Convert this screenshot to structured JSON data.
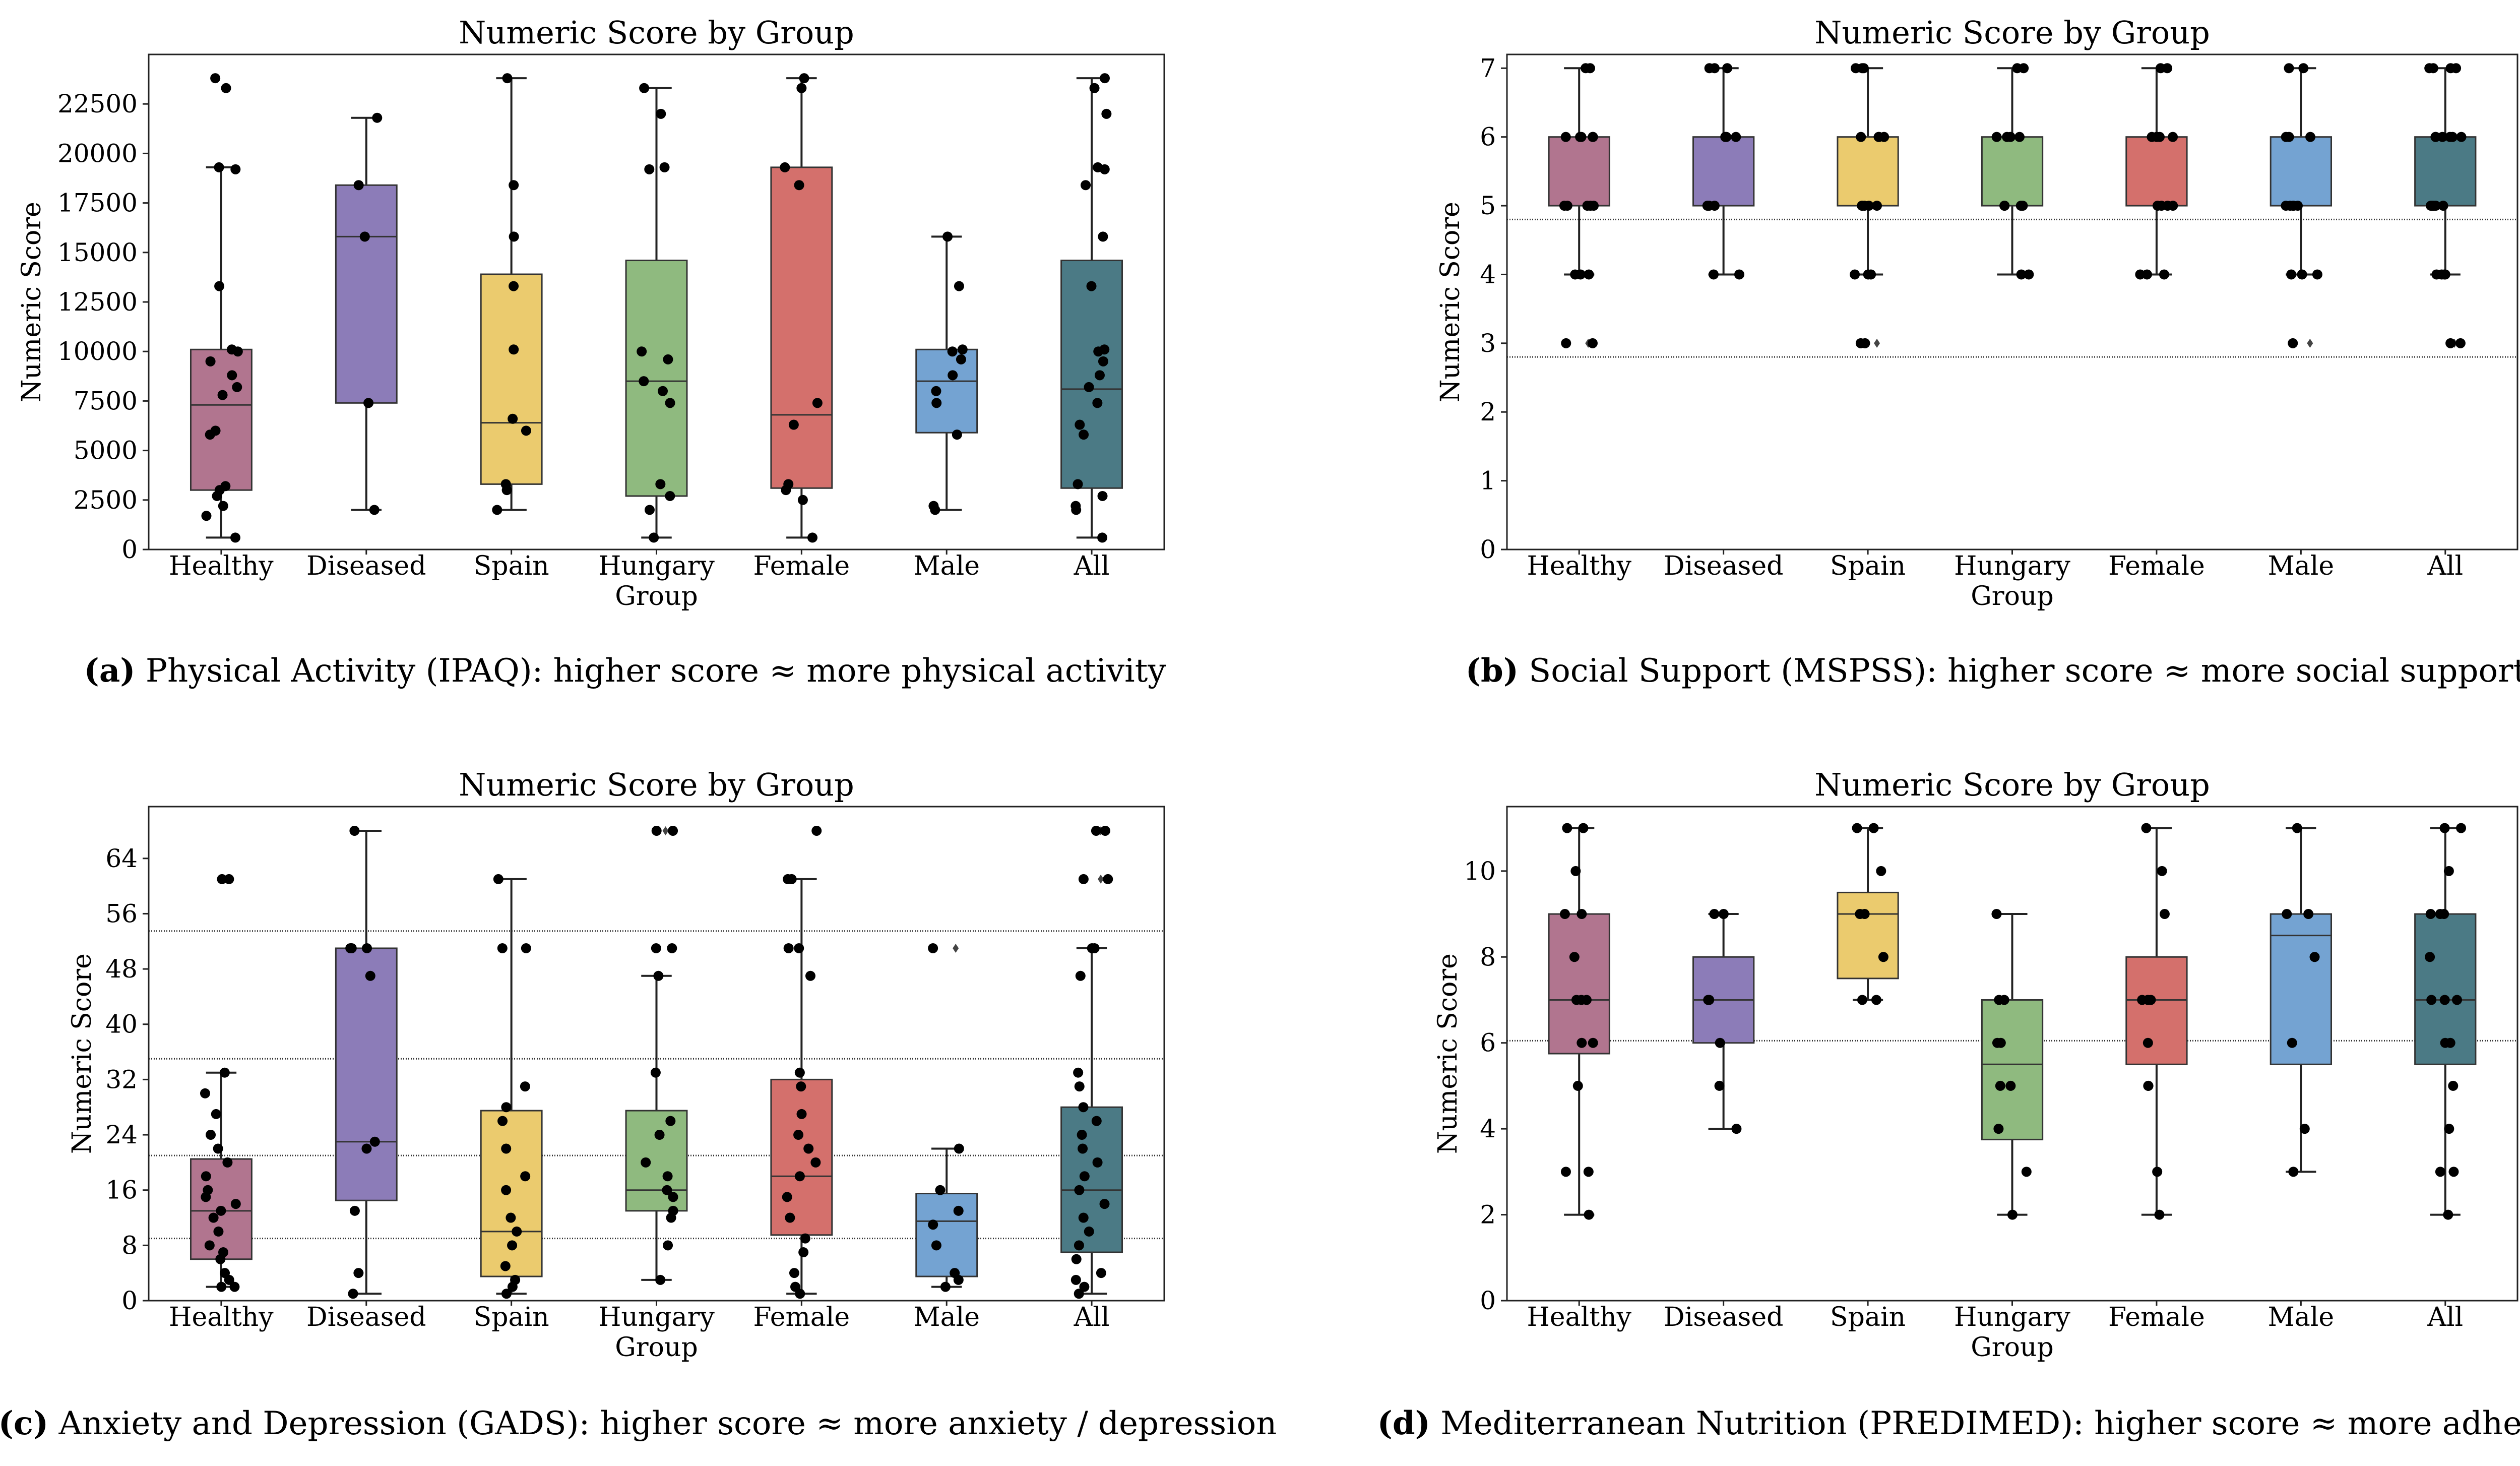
{
  "figure": {
    "colors": {
      "Healthy": "#b1758f",
      "Diseased": "#8c7cb8",
      "Spain": "#ebcb6e",
      "Hungary": "#8fba7f",
      "Female": "#d4706c",
      "Male": "#74a3d2",
      "All": "#4b7a85"
    }
  },
  "chart_data": [
    {
      "id": "a",
      "type": "box",
      "title": "Numeric Score by Group",
      "xlabel": "Group",
      "ylabel": "Numeric Score",
      "caption_label": "(a)",
      "caption_text": "Physical Activity (IPAQ): higher score ≈ more physical activity",
      "categories": [
        "Healthy",
        "Diseased",
        "Spain",
        "Hungary",
        "Female",
        "Male",
        "All"
      ],
      "ylim": [
        0,
        25000
      ],
      "yticks": [
        0,
        2500,
        5000,
        7500,
        10000,
        12500,
        15000,
        17500,
        20000,
        22500
      ],
      "ytick_labels": [
        "0",
        "2500",
        "5000",
        "7500",
        "10000",
        "12500",
        "15000",
        "17500",
        "20000",
        "22500"
      ],
      "hlines": [],
      "boxes": [
        {
          "group": "Healthy",
          "q1": 3000,
          "median": 7300,
          "q3": 10100,
          "wlo": 600,
          "whi": 19300,
          "outliers": [],
          "points": [
            600,
            1700,
            2200,
            2700,
            3000,
            3200,
            5800,
            6000,
            7800,
            8200,
            8800,
            9500,
            10000,
            10100,
            13300,
            19200,
            19300,
            23300,
            23800
          ]
        },
        {
          "group": "Diseased",
          "q1": 7400,
          "median": 15800,
          "q3": 18400,
          "wlo": 2000,
          "whi": 21800,
          "outliers": [],
          "points": [
            2000,
            7400,
            15800,
            18400,
            21800
          ]
        },
        {
          "group": "Spain",
          "q1": 3300,
          "median": 6400,
          "q3": 13900,
          "wlo": 2000,
          "whi": 23800,
          "outliers": [],
          "points": [
            2000,
            3000,
            3300,
            6000,
            6600,
            10100,
            13300,
            15800,
            18400,
            23800
          ]
        },
        {
          "group": "Hungary",
          "q1": 2700,
          "median": 8500,
          "q3": 14600,
          "wlo": 600,
          "whi": 23300,
          "outliers": [],
          "points": [
            600,
            2000,
            2700,
            3300,
            7400,
            8000,
            8500,
            9600,
            10000,
            19200,
            19300,
            22000,
            23300
          ]
        },
        {
          "group": "Female",
          "q1": 3100,
          "median": 6800,
          "q3": 19300,
          "wlo": 600,
          "whi": 23800,
          "outliers": [],
          "points": [
            600,
            2500,
            3000,
            3300,
            6300,
            7400,
            18400,
            19300,
            23300,
            23800
          ]
        },
        {
          "group": "Male",
          "q1": 5900,
          "median": 8500,
          "q3": 10100,
          "wlo": 2000,
          "whi": 15800,
          "outliers": [],
          "points": [
            2000,
            2200,
            5800,
            7400,
            8000,
            8800,
            9600,
            10000,
            10100,
            13300,
            15800
          ]
        },
        {
          "group": "All",
          "q1": 3100,
          "median": 8100,
          "q3": 14600,
          "wlo": 600,
          "whi": 23800,
          "outliers": [],
          "points": [
            600,
            2000,
            2200,
            2700,
            3300,
            5800,
            6300,
            7400,
            8200,
            8800,
            9500,
            10000,
            10100,
            13300,
            15800,
            18400,
            19200,
            19300,
            22000,
            23300,
            23800
          ]
        }
      ]
    },
    {
      "id": "b",
      "type": "box",
      "title": "Numeric Score by Group",
      "xlabel": "Group",
      "ylabel": "Numeric Score",
      "caption_label": "(b)",
      "caption_text": "Social Support (MSPSS): higher score ≈ more social support",
      "categories": [
        "Healthy",
        "Diseased",
        "Spain",
        "Hungary",
        "Female",
        "Male",
        "All"
      ],
      "ylim": [
        0,
        7.2
      ],
      "yticks": [
        0,
        1,
        2,
        3,
        4,
        5,
        6,
        7
      ],
      "ytick_labels": [
        "0",
        "1",
        "2",
        "3",
        "4",
        "5",
        "6",
        "7"
      ],
      "hlines": [
        4.8,
        2.8
      ],
      "boxes": [
        {
          "group": "Healthy",
          "q1": 5,
          "median": 5,
          "q3": 6,
          "wlo": 4,
          "whi": 7,
          "outliers": [
            3
          ],
          "points": [
            3,
            3,
            4,
            4,
            4,
            5,
            5,
            5,
            5,
            5,
            6,
            6,
            6,
            6,
            6,
            7,
            7
          ]
        },
        {
          "group": "Diseased",
          "q1": 5,
          "median": 5,
          "q3": 6,
          "wlo": 4,
          "whi": 7,
          "outliers": [],
          "points": [
            4,
            4,
            5,
            5,
            5,
            6,
            6,
            6,
            7,
            7,
            7
          ]
        },
        {
          "group": "Spain",
          "q1": 5,
          "median": 5,
          "q3": 6,
          "wlo": 4,
          "whi": 7,
          "outliers": [
            3
          ],
          "points": [
            3,
            3,
            4,
            4,
            4,
            5,
            5,
            5,
            5,
            5,
            6,
            6,
            6,
            6,
            7,
            7,
            7
          ]
        },
        {
          "group": "Hungary",
          "q1": 5,
          "median": 5,
          "q3": 6,
          "wlo": 4,
          "whi": 7,
          "outliers": [],
          "points": [
            4,
            4,
            5,
            5,
            5,
            5,
            6,
            6,
            6,
            6,
            7,
            7
          ]
        },
        {
          "group": "Female",
          "q1": 5,
          "median": 5,
          "q3": 6,
          "wlo": 4,
          "whi": 7,
          "outliers": [],
          "points": [
            4,
            4,
            4,
            5,
            5,
            5,
            5,
            6,
            6,
            6,
            6,
            7,
            7
          ]
        },
        {
          "group": "Male",
          "q1": 5,
          "median": 5,
          "q3": 6,
          "wlo": 4,
          "whi": 7,
          "outliers": [
            3
          ],
          "points": [
            3,
            4,
            4,
            4,
            5,
            5,
            5,
            5,
            5,
            6,
            6,
            6,
            7,
            7
          ]
        },
        {
          "group": "All",
          "q1": 5,
          "median": 5,
          "q3": 6,
          "wlo": 4,
          "whi": 7,
          "outliers": [
            3
          ],
          "points": [
            3,
            3,
            4,
            4,
            4,
            4,
            5,
            5,
            5,
            5,
            5,
            5,
            6,
            6,
            6,
            6,
            6,
            6,
            7,
            7,
            7,
            7
          ]
        }
      ]
    },
    {
      "id": "c",
      "type": "box",
      "title": "Numeric Score by Group",
      "xlabel": "Group",
      "ylabel": "Numeric Score",
      "caption_label": "(c)",
      "caption_text": "Anxiety and Depression (GADS): higher score ≈ more anxiety / depression",
      "categories": [
        "Healthy",
        "Diseased",
        "Spain",
        "Hungary",
        "Female",
        "Male",
        "All"
      ],
      "ylim": [
        0,
        71.5
      ],
      "yticks": [
        0,
        8,
        16,
        24,
        32,
        40,
        48,
        56,
        64
      ],
      "ytick_labels": [
        "0",
        "8",
        "16",
        "24",
        "32",
        "40",
        "48",
        "56",
        "64"
      ],
      "hlines": [
        53.5,
        35,
        21,
        9
      ],
      "boxes": [
        {
          "group": "Healthy",
          "q1": 6,
          "median": 13,
          "q3": 20.5,
          "wlo": 2,
          "whi": 33,
          "outliers": [
            61
          ],
          "points": [
            2,
            2,
            3,
            4,
            6,
            7,
            8,
            10,
            12,
            13,
            14,
            15,
            16,
            18,
            20,
            22,
            24,
            27,
            30,
            33,
            61,
            61
          ]
        },
        {
          "group": "Diseased",
          "q1": 14.5,
          "median": 23,
          "q3": 51,
          "wlo": 1,
          "whi": 68,
          "outliers": [],
          "points": [
            1,
            4,
            13,
            22,
            23,
            47,
            51,
            51,
            51,
            68
          ]
        },
        {
          "group": "Spain",
          "q1": 3.5,
          "median": 10,
          "q3": 27.5,
          "wlo": 1,
          "whi": 61,
          "outliers": [],
          "points": [
            1,
            2,
            3,
            5,
            8,
            10,
            12,
            16,
            18,
            22,
            26,
            28,
            31,
            51,
            51,
            61
          ]
        },
        {
          "group": "Hungary",
          "q1": 13,
          "median": 16,
          "q3": 27.5,
          "wlo": 3,
          "whi": 47,
          "outliers": [
            68
          ],
          "points": [
            3,
            8,
            12,
            13,
            15,
            16,
            18,
            20,
            24,
            26,
            33,
            47,
            51,
            51,
            68,
            68
          ]
        },
        {
          "group": "Female",
          "q1": 9.5,
          "median": 18,
          "q3": 32,
          "wlo": 1,
          "whi": 61,
          "outliers": [],
          "points": [
            1,
            2,
            4,
            7,
            9,
            12,
            15,
            18,
            20,
            22,
            24,
            27,
            31,
            33,
            47,
            51,
            51,
            61,
            61,
            68
          ]
        },
        {
          "group": "Male",
          "q1": 3.5,
          "median": 11.5,
          "q3": 15.5,
          "wlo": 2,
          "whi": 22,
          "outliers": [
            51
          ],
          "points": [
            2,
            3,
            4,
            8,
            11,
            13,
            16,
            22,
            51
          ]
        },
        {
          "group": "All",
          "q1": 7,
          "median": 16,
          "q3": 28,
          "wlo": 1,
          "whi": 51,
          "outliers": [
            61,
            68
          ],
          "points": [
            1,
            2,
            3,
            4,
            6,
            8,
            10,
            12,
            14,
            16,
            18,
            20,
            22,
            24,
            26,
            28,
            31,
            33,
            47,
            51,
            51,
            61,
            61,
            68,
            68
          ]
        }
      ]
    },
    {
      "id": "d",
      "type": "box",
      "title": "Numeric Score by Group",
      "xlabel": "Group",
      "ylabel": "Numeric Score",
      "caption_label": "(d)",
      "caption_text": "Mediterranean Nutrition (PREDIMED): higher score ≈ more adherence",
      "categories": [
        "Healthy",
        "Diseased",
        "Spain",
        "Hungary",
        "Female",
        "Male",
        "All"
      ],
      "ylim": [
        0,
        11.5
      ],
      "yticks": [
        0,
        2,
        4,
        6,
        8,
        10
      ],
      "ytick_labels": [
        "0",
        "2",
        "4",
        "6",
        "8",
        "10"
      ],
      "hlines": [
        6.05
      ],
      "boxes": [
        {
          "group": "Healthy",
          "q1": 5.75,
          "median": 7,
          "q3": 9,
          "wlo": 2,
          "whi": 11,
          "outliers": [],
          "points": [
            2,
            3,
            3,
            5,
            6,
            6,
            7,
            7,
            7,
            8,
            9,
            9,
            10,
            11,
            11
          ]
        },
        {
          "group": "Diseased",
          "q1": 6,
          "median": 7,
          "q3": 8,
          "wlo": 4,
          "whi": 9,
          "outliers": [],
          "points": [
            4,
            5,
            6,
            7,
            7,
            9,
            9
          ]
        },
        {
          "group": "Spain",
          "q1": 7.5,
          "median": 9,
          "q3": 9.5,
          "wlo": 7,
          "whi": 11,
          "outliers": [],
          "points": [
            7,
            7,
            8,
            9,
            9,
            10,
            11,
            11
          ]
        },
        {
          "group": "Hungary",
          "q1": 3.75,
          "median": 5.5,
          "q3": 7,
          "wlo": 2,
          "whi": 9,
          "outliers": [],
          "points": [
            2,
            3,
            4,
            5,
            5,
            6,
            6,
            7,
            7,
            9
          ]
        },
        {
          "group": "Female",
          "q1": 5.5,
          "median": 7,
          "q3": 8,
          "wlo": 2,
          "whi": 11,
          "outliers": [],
          "points": [
            2,
            3,
            5,
            5,
            6,
            7,
            7,
            7,
            9,
            10,
            11
          ]
        },
        {
          "group": "Male",
          "q1": 5.5,
          "median": 8.5,
          "q3": 9,
          "wlo": 3,
          "whi": 11,
          "outliers": [],
          "points": [
            3,
            4,
            6,
            8,
            9,
            9,
            11
          ]
        },
        {
          "group": "All",
          "q1": 5.5,
          "median": 7,
          "q3": 9,
          "wlo": 2,
          "whi": 11,
          "outliers": [],
          "points": [
            2,
            3,
            3,
            4,
            5,
            6,
            6,
            7,
            7,
            7,
            8,
            9,
            9,
            9,
            10,
            11,
            11
          ]
        }
      ]
    }
  ]
}
